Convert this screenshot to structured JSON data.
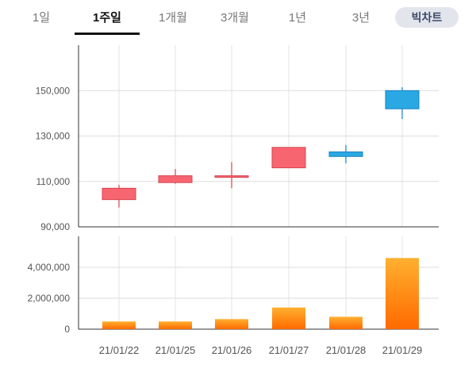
{
  "tabs": [
    {
      "label": "1일"
    },
    {
      "label": "1주일"
    },
    {
      "label": "1개월"
    },
    {
      "label": "3개월"
    },
    {
      "label": "1년"
    },
    {
      "label": "3년"
    }
  ],
  "active_tab": "1주일",
  "big_chart_label": "빅차트",
  "colors": {
    "up": "#f76570",
    "down": "#2aa8e4",
    "volume_top": "#ffb030",
    "volume_bottom": "#ff6a00"
  },
  "chart_data": [
    {
      "type": "candlestick",
      "categories": [
        "21/01/22",
        "21/01/25",
        "21/01/26",
        "21/01/27",
        "21/01/28",
        "21/01/29"
      ],
      "candles": [
        {
          "open": 102000,
          "close": 107000,
          "high": 108500,
          "low": 98500,
          "direction": "up"
        },
        {
          "open": 109500,
          "close": 112500,
          "high": 115500,
          "low": 109000,
          "direction": "up"
        },
        {
          "open": 112000,
          "close": 112500,
          "high": 118500,
          "low": 107000,
          "direction": "up"
        },
        {
          "open": 116000,
          "close": 125000,
          "high": 125000,
          "low": 116000,
          "direction": "up"
        },
        {
          "open": 123000,
          "close": 121000,
          "high": 126000,
          "low": 118000,
          "direction": "down"
        },
        {
          "open": 150000,
          "close": 142000,
          "high": 151500,
          "low": 137500,
          "direction": "down"
        }
      ],
      "yticks": [
        "150,000",
        "130,000",
        "110,000",
        "90,000"
      ],
      "ytick_values": [
        150000,
        130000,
        110000,
        90000
      ],
      "ylim": [
        90000,
        170000
      ]
    },
    {
      "type": "bar",
      "categories": [
        "21/01/22",
        "21/01/25",
        "21/01/26",
        "21/01/27",
        "21/01/28",
        "21/01/29"
      ],
      "values": [
        500000,
        500000,
        650000,
        1400000,
        800000,
        4600000
      ],
      "yticks": [
        "4,000,000",
        "2,000,000",
        "0"
      ],
      "ytick_values": [
        4000000,
        2000000,
        0
      ],
      "ylim": [
        0,
        6000000
      ]
    }
  ]
}
